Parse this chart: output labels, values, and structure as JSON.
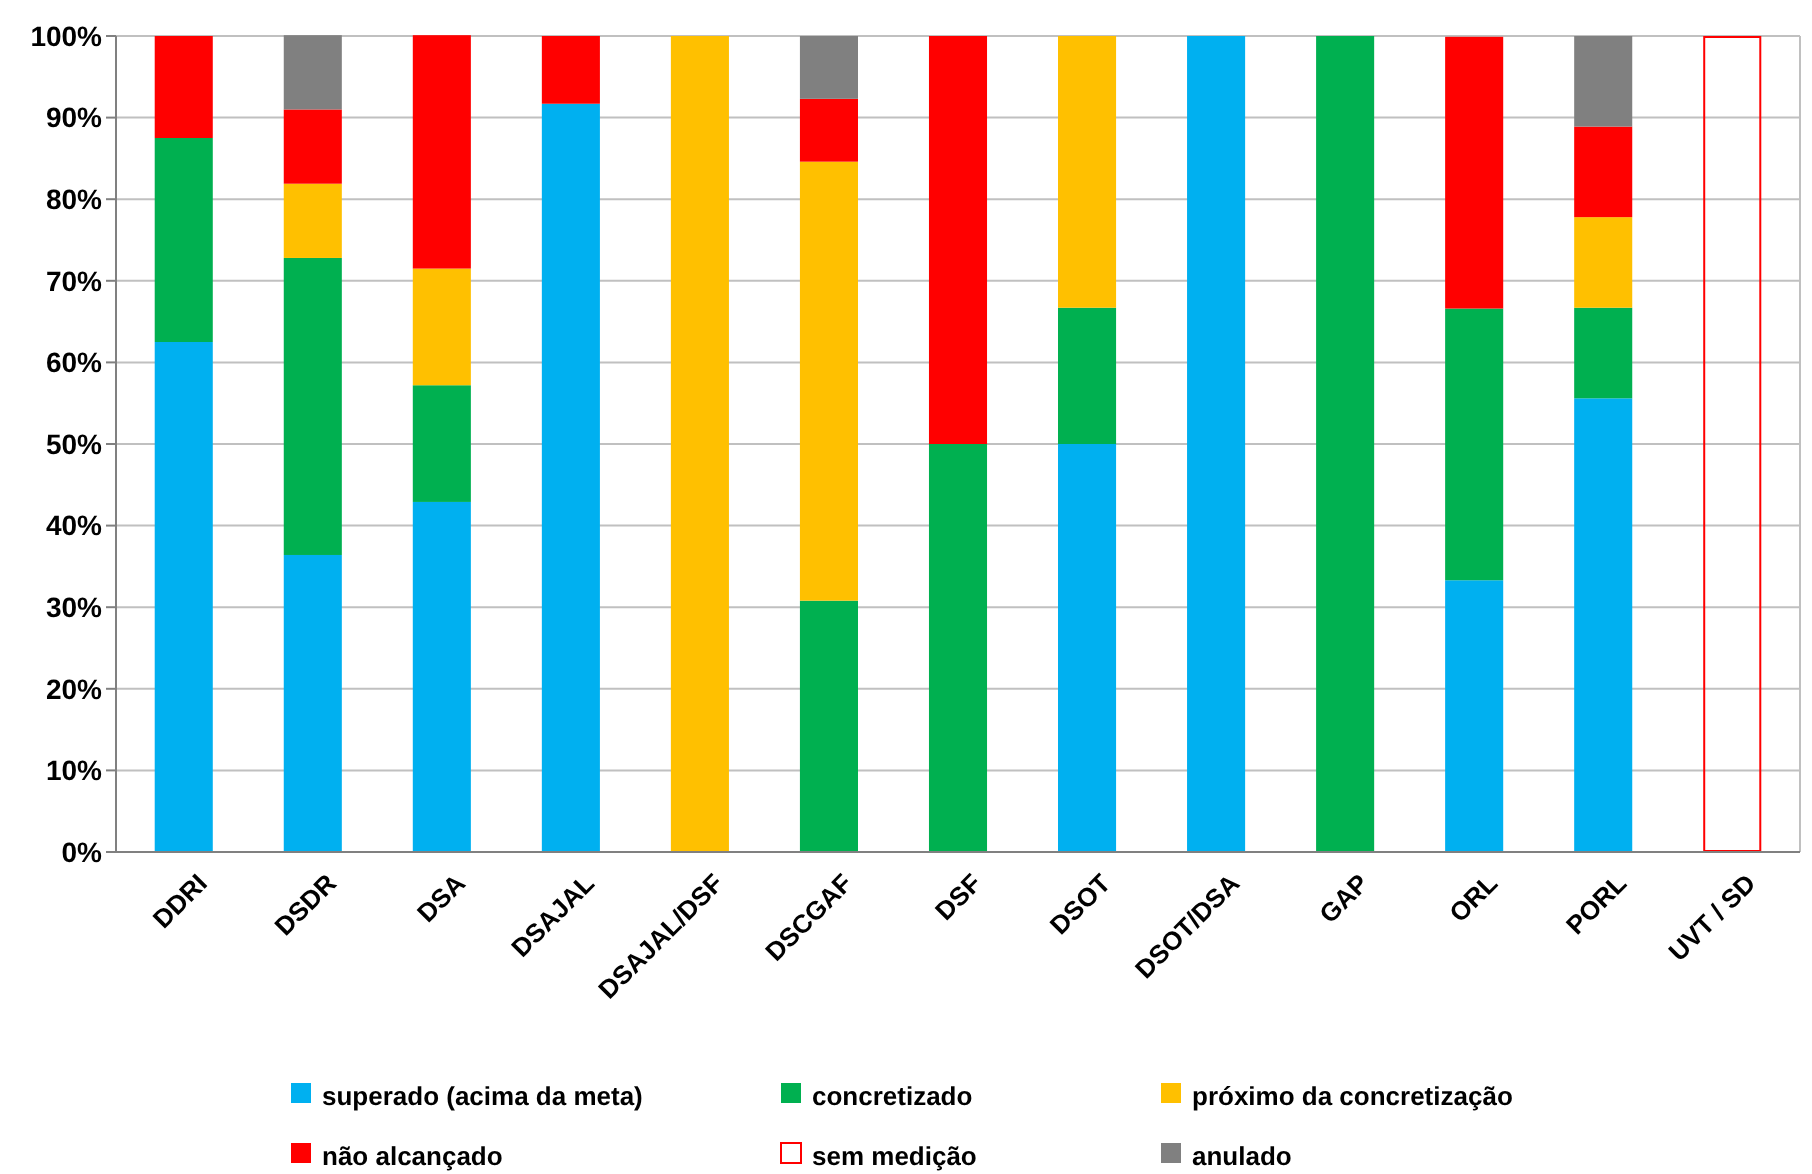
{
  "chart_data": {
    "type": "bar",
    "stacked": true,
    "categories": [
      "DDRI",
      "DSDR",
      "DSA",
      "DSAJAL",
      "DSAJAL/DSF",
      "DSCGAF",
      "DSF",
      "DSOT",
      "DSOT/DSA",
      "GAP",
      "ORL",
      "PORL",
      "UVT / SD"
    ],
    "series": [
      {
        "name": "superado (acima da meta)",
        "color": "#00b0f0",
        "values": [
          62.5,
          36.4,
          42.9,
          91.7,
          0,
          0,
          0,
          50,
          100,
          0,
          33.3,
          55.6,
          0
        ]
      },
      {
        "name": "concretizado",
        "color": "#00b050",
        "values": [
          25,
          36.4,
          14.3,
          0,
          0,
          30.8,
          50,
          16.7,
          0,
          100,
          33.3,
          11.1,
          0
        ]
      },
      {
        "name": "próximo da concretização",
        "color": "#ffc000",
        "values": [
          0,
          9.1,
          14.3,
          0,
          100,
          53.8,
          0,
          33.3,
          0,
          0,
          0,
          11.1,
          0
        ]
      },
      {
        "name": "não alcançado",
        "color": "#ff0000",
        "values": [
          12.5,
          9.1,
          28.6,
          8.3,
          0,
          7.7,
          50,
          0,
          0,
          0,
          33.3,
          11.1,
          0
        ]
      },
      {
        "name": "sem medição",
        "color": "#ff0000",
        "line_style": "solid",
        "values": [
          0,
          0,
          0,
          0,
          0,
          0,
          0,
          0,
          0,
          0,
          0,
          0,
          100
        ]
      },
      {
        "name": "anulado",
        "color": "#808080",
        "values": [
          0,
          9.1,
          0,
          0,
          0,
          7.7,
          0,
          0,
          0,
          0,
          0,
          11.1,
          0
        ]
      }
    ],
    "ylim": [
      0,
      100
    ],
    "yticks": [
      {
        "value": 0,
        "label": "0%"
      },
      {
        "value": 10,
        "label": "10%"
      },
      {
        "value": 20,
        "label": "20%"
      },
      {
        "value": 30,
        "label": "30%"
      },
      {
        "value": 40,
        "label": "40%"
      },
      {
        "value": 50,
        "label": "50%"
      },
      {
        "value": 60,
        "label": "60%"
      },
      {
        "value": 70,
        "label": "70%"
      },
      {
        "value": 80,
        "label": "80%"
      },
      {
        "value": 90,
        "label": "90%"
      },
      {
        "value": 100,
        "label": "100%"
      }
    ],
    "grid": "y",
    "legend": "bottom"
  }
}
